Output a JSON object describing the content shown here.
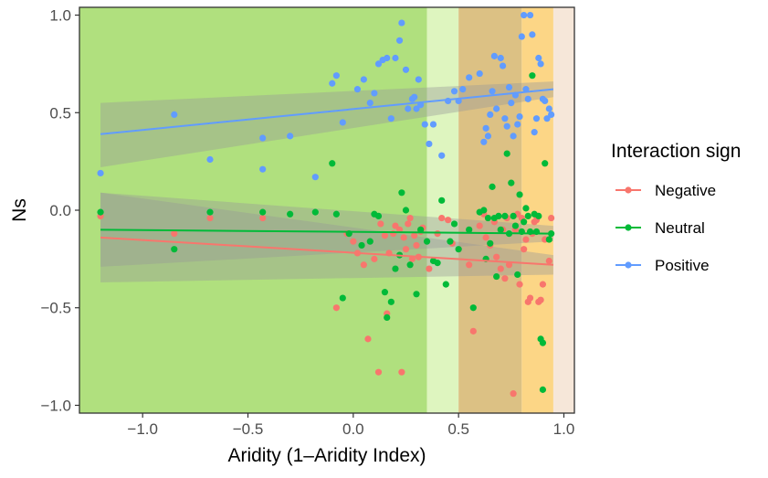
{
  "chart_data": {
    "type": "scatter",
    "xlabel": "Aridity (1–Aridity Index)",
    "ylabel": "Ns",
    "xlim": [
      -1.3,
      1.05
    ],
    "ylim": [
      -1.04,
      1.04
    ],
    "x_ticks": [
      -1.0,
      -0.5,
      0.0,
      0.5,
      1.0
    ],
    "x_tick_labels": [
      "−1.0",
      "−0.5",
      "0.0",
      "0.5",
      "1.0"
    ],
    "y_ticks": [
      -1.0,
      -0.5,
      0.0,
      0.5,
      1.0
    ],
    "y_tick_labels": [
      "−1.0",
      "−0.5",
      "0.0",
      "0.5",
      "1.0"
    ],
    "grid": false,
    "legend": {
      "title": "Interaction sign",
      "position": "right",
      "entries": [
        "Negative",
        "Neutral",
        "Positive"
      ]
    },
    "background_bands": [
      {
        "x0": -1.3,
        "x1": 0.35,
        "color": "#b0e07e"
      },
      {
        "x0": 0.35,
        "x1": 0.5,
        "color": "#def5bf"
      },
      {
        "x0": 0.5,
        "x1": 0.8,
        "color": "#dcc184"
      },
      {
        "x0": 0.8,
        "x1": 0.95,
        "color": "#fcd686"
      },
      {
        "x0": 0.95,
        "x1": 1.05,
        "color": "#f6e7d9"
      }
    ],
    "series": [
      {
        "name": "Negative",
        "color": "#f8766d",
        "fit": {
          "x": [
            -1.2,
            0.95
          ],
          "y": [
            -0.14,
            -0.28
          ],
          "ci_lower": [
            -0.37,
            -0.33
          ],
          "ci_upper": [
            0.09,
            -0.23
          ]
        },
        "points": [
          [
            -1.2,
            -0.03
          ],
          [
            -0.85,
            -0.12
          ],
          [
            -0.68,
            -0.04
          ],
          [
            -0.43,
            -0.04
          ],
          [
            -0.08,
            -0.5
          ],
          [
            -0.03,
            -0.12
          ],
          [
            0.0,
            -0.16
          ],
          [
            0.02,
            -0.22
          ],
          [
            0.05,
            -0.28
          ],
          [
            0.07,
            -0.66
          ],
          [
            0.1,
            -0.25
          ],
          [
            0.12,
            -0.83
          ],
          [
            0.13,
            -0.07
          ],
          [
            0.15,
            -0.13
          ],
          [
            0.16,
            -0.53
          ],
          [
            0.17,
            -0.22
          ],
          [
            0.19,
            -0.12
          ],
          [
            0.2,
            -0.08
          ],
          [
            0.22,
            -0.1
          ],
          [
            0.23,
            -0.83
          ],
          [
            0.24,
            -0.14
          ],
          [
            0.25,
            -0.2
          ],
          [
            0.26,
            -0.07
          ],
          [
            0.27,
            -0.04
          ],
          [
            0.28,
            -0.25
          ],
          [
            0.29,
            -0.13
          ],
          [
            0.3,
            -0.18
          ],
          [
            0.31,
            -0.24
          ],
          [
            0.32,
            -0.11
          ],
          [
            0.33,
            -0.09
          ],
          [
            0.36,
            -0.3
          ],
          [
            0.4,
            -0.12
          ],
          [
            0.42,
            -0.04
          ],
          [
            0.45,
            -0.05
          ],
          [
            0.47,
            -0.17
          ],
          [
            0.55,
            -0.28
          ],
          [
            0.57,
            -0.62
          ],
          [
            0.6,
            -0.08
          ],
          [
            0.62,
            -0.02
          ],
          [
            0.63,
            -0.14
          ],
          [
            0.65,
            -0.18
          ],
          [
            0.67,
            -0.06
          ],
          [
            0.68,
            -0.24
          ],
          [
            0.7,
            -0.3
          ],
          [
            0.71,
            -0.1
          ],
          [
            0.72,
            -0.35
          ],
          [
            0.73,
            -0.04
          ],
          [
            0.74,
            -0.28
          ],
          [
            0.76,
            -0.94
          ],
          [
            0.77,
            -0.1
          ],
          [
            0.78,
            -0.02
          ],
          [
            0.79,
            -0.38
          ],
          [
            0.8,
            -0.04
          ],
          [
            0.81,
            -0.2
          ],
          [
            0.82,
            -0.15
          ],
          [
            0.83,
            -0.47
          ],
          [
            0.84,
            -0.45
          ],
          [
            0.85,
            -0.12
          ],
          [
            0.86,
            -0.06
          ],
          [
            0.87,
            -0.05
          ],
          [
            0.88,
            -0.47
          ],
          [
            0.89,
            -0.46
          ],
          [
            0.9,
            -0.38
          ],
          [
            0.91,
            -0.15
          ],
          [
            0.93,
            -0.26
          ],
          [
            0.94,
            -0.04
          ]
        ]
      },
      {
        "name": "Neutral",
        "color": "#00ba38",
        "fit": {
          "x": [
            -1.2,
            0.95
          ],
          "y": [
            -0.1,
            -0.12
          ],
          "ci_lower": [
            -0.29,
            -0.16
          ],
          "ci_upper": [
            0.09,
            -0.08
          ]
        },
        "points": [
          [
            -1.2,
            -0.01
          ],
          [
            -0.85,
            -0.2
          ],
          [
            -0.68,
            -0.01
          ],
          [
            -0.43,
            -0.01
          ],
          [
            -0.3,
            -0.02
          ],
          [
            -0.18,
            -0.01
          ],
          [
            -0.1,
            0.24
          ],
          [
            -0.08,
            -0.02
          ],
          [
            -0.05,
            -0.45
          ],
          [
            -0.02,
            -0.12
          ],
          [
            0.04,
            -0.18
          ],
          [
            0.08,
            -0.16
          ],
          [
            0.1,
            -0.02
          ],
          [
            0.12,
            -0.03
          ],
          [
            0.15,
            -0.42
          ],
          [
            0.16,
            -0.55
          ],
          [
            0.18,
            -0.47
          ],
          [
            0.2,
            -0.3
          ],
          [
            0.22,
            -0.23
          ],
          [
            0.23,
            0.09
          ],
          [
            0.25,
            -0.0
          ],
          [
            0.27,
            -0.28
          ],
          [
            0.3,
            -0.43
          ],
          [
            0.32,
            -0.1
          ],
          [
            0.35,
            -0.16
          ],
          [
            0.38,
            -0.26
          ],
          [
            0.4,
            -0.27
          ],
          [
            0.42,
            0.05
          ],
          [
            0.44,
            -0.38
          ],
          [
            0.46,
            -0.16
          ],
          [
            0.48,
            -0.07
          ],
          [
            0.5,
            -0.2
          ],
          [
            0.55,
            -0.1
          ],
          [
            0.57,
            -0.5
          ],
          [
            0.6,
            -0.01
          ],
          [
            0.62,
            0.0
          ],
          [
            0.63,
            -0.25
          ],
          [
            0.64,
            -0.04
          ],
          [
            0.65,
            -0.17
          ],
          [
            0.66,
            0.12
          ],
          [
            0.67,
            -0.04
          ],
          [
            0.68,
            -0.34
          ],
          [
            0.69,
            -0.03
          ],
          [
            0.7,
            -0.1
          ],
          [
            0.72,
            -0.03
          ],
          [
            0.73,
            0.29
          ],
          [
            0.74,
            -0.12
          ],
          [
            0.75,
            0.14
          ],
          [
            0.76,
            -0.03
          ],
          [
            0.77,
            -0.08
          ],
          [
            0.78,
            -0.33
          ],
          [
            0.79,
            0.08
          ],
          [
            0.8,
            -0.11
          ],
          [
            0.81,
            -0.06
          ],
          [
            0.82,
            0.01
          ],
          [
            0.83,
            -0.03
          ],
          [
            0.84,
            -0.11
          ],
          [
            0.85,
            0.69
          ],
          [
            0.86,
            -0.02
          ],
          [
            0.87,
            -0.11
          ],
          [
            0.88,
            -0.03
          ],
          [
            0.89,
            -0.66
          ],
          [
            0.9,
            -0.68
          ],
          [
            0.9,
            -0.92
          ],
          [
            0.91,
            0.24
          ],
          [
            0.93,
            -0.15
          ],
          [
            0.94,
            -0.12
          ]
        ]
      },
      {
        "name": "Positive",
        "color": "#619cff",
        "fit": {
          "x": [
            -1.2,
            0.95
          ],
          "y": [
            0.39,
            0.62
          ],
          "ci_lower": [
            0.22,
            0.58
          ],
          "ci_upper": [
            0.55,
            0.66
          ]
        },
        "points": [
          [
            -1.2,
            0.19
          ],
          [
            -0.85,
            0.49
          ],
          [
            -0.68,
            0.26
          ],
          [
            -0.43,
            0.37
          ],
          [
            -0.43,
            0.21
          ],
          [
            -0.3,
            0.38
          ],
          [
            -0.18,
            0.17
          ],
          [
            -0.1,
            0.65
          ],
          [
            -0.08,
            0.69
          ],
          [
            -0.05,
            0.45
          ],
          [
            0.02,
            0.62
          ],
          [
            0.05,
            0.67
          ],
          [
            0.08,
            0.55
          ],
          [
            0.1,
            0.6
          ],
          [
            0.12,
            0.75
          ],
          [
            0.14,
            0.77
          ],
          [
            0.16,
            0.78
          ],
          [
            0.18,
            0.47
          ],
          [
            0.2,
            0.78
          ],
          [
            0.22,
            0.87
          ],
          [
            0.23,
            0.96
          ],
          [
            0.25,
            0.72
          ],
          [
            0.26,
            0.52
          ],
          [
            0.28,
            0.57
          ],
          [
            0.29,
            0.58
          ],
          [
            0.3,
            0.52
          ],
          [
            0.31,
            0.67
          ],
          [
            0.32,
            0.54
          ],
          [
            0.34,
            0.44
          ],
          [
            0.36,
            0.34
          ],
          [
            0.38,
            0.44
          ],
          [
            0.42,
            0.28
          ],
          [
            0.45,
            0.56
          ],
          [
            0.48,
            0.61
          ],
          [
            0.5,
            0.56
          ],
          [
            0.52,
            0.62
          ],
          [
            0.55,
            0.68
          ],
          [
            0.6,
            0.7
          ],
          [
            0.62,
            0.35
          ],
          [
            0.63,
            0.42
          ],
          [
            0.64,
            0.38
          ],
          [
            0.65,
            0.49
          ],
          [
            0.66,
            0.61
          ],
          [
            0.67,
            0.79
          ],
          [
            0.68,
            0.52
          ],
          [
            0.7,
            0.78
          ],
          [
            0.71,
            0.74
          ],
          [
            0.72,
            0.47
          ],
          [
            0.73,
            0.43
          ],
          [
            0.74,
            0.63
          ],
          [
            0.75,
            0.55
          ],
          [
            0.76,
            0.38
          ],
          [
            0.77,
            0.59
          ],
          [
            0.78,
            0.44
          ],
          [
            0.79,
            0.48
          ],
          [
            0.8,
            0.89
          ],
          [
            0.81,
            1.0
          ],
          [
            0.82,
            0.62
          ],
          [
            0.83,
            0.57
          ],
          [
            0.84,
            1.0
          ],
          [
            0.85,
            0.9
          ],
          [
            0.86,
            0.4
          ],
          [
            0.87,
            0.47
          ],
          [
            0.88,
            0.78
          ],
          [
            0.89,
            0.75
          ],
          [
            0.9,
            0.57
          ],
          [
            0.91,
            0.56
          ],
          [
            0.92,
            0.47
          ],
          [
            0.93,
            0.52
          ],
          [
            0.94,
            0.49
          ]
        ]
      }
    ]
  }
}
